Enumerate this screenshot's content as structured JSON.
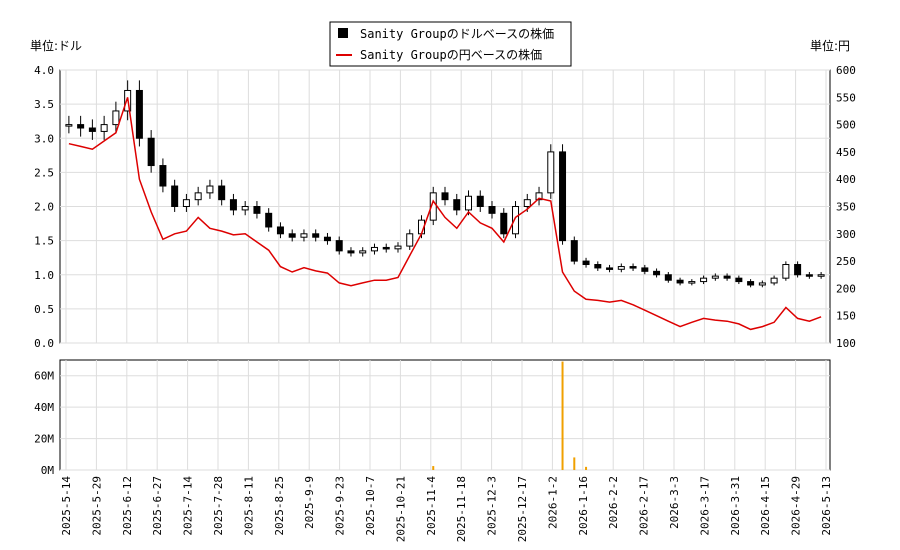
{
  "chart_data": [
    {
      "type": "candlestick+line",
      "left_unit": "単位:ドル",
      "right_unit": "単位:円",
      "legend": [
        {
          "label": "Sanity Groupのドルベースの株価",
          "color": "#000000",
          "marker": "square"
        },
        {
          "label": "Sanity Groupの円ベースの株価",
          "color": "#dd0000",
          "marker": "line"
        }
      ],
      "y_left": {
        "min": 0,
        "max": 4.0,
        "ticks": [
          "0.0",
          "0.5",
          "1.0",
          "1.5",
          "2.0",
          "2.5",
          "3.0",
          "3.5",
          "4.0"
        ]
      },
      "y_right": {
        "min": 100,
        "max": 600,
        "ticks": [
          "100",
          "150",
          "200",
          "250",
          "300",
          "350",
          "400",
          "450",
          "500",
          "550",
          "600"
        ]
      },
      "x_dates": [
        "2025-5-14",
        "2025-5-29",
        "2025-6-12",
        "2025-6-27",
        "2025-7-14",
        "2025-7-28",
        "2025-8-11",
        "2025-8-25",
        "2025-9-9",
        "2025-9-23",
        "2025-10-7",
        "2025-10-21",
        "2025-11-4",
        "2025-11-18",
        "2025-12-3",
        "2025-12-17",
        "2026-1-2",
        "2026-1-16",
        "2026-2-2",
        "2026-2-17",
        "2026-3-3",
        "2026-3-17",
        "2026-3-31",
        "2026-4-15",
        "2026-4-29",
        "2026-5-13"
      ],
      "usd_close_approx": [
        3.2,
        3.15,
        3.1,
        3.2,
        3.4,
        3.7,
        3.0,
        2.6,
        2.3,
        2.0,
        2.1,
        2.2,
        2.3,
        2.1,
        1.95,
        2.0,
        1.9,
        1.7,
        1.6,
        1.55,
        1.6,
        1.55,
        1.5,
        1.35,
        1.32,
        1.35,
        1.4,
        1.38,
        1.42,
        1.6,
        1.8,
        2.2,
        2.1,
        1.95,
        2.15,
        2.0,
        1.9,
        1.6,
        2.0,
        2.1,
        2.2,
        2.8,
        1.5,
        1.2,
        1.15,
        1.1,
        1.08,
        1.12,
        1.1,
        1.05,
        1.0,
        0.92,
        0.88,
        0.9,
        0.95,
        0.98,
        0.95,
        0.9,
        0.85,
        0.88,
        0.95,
        1.15,
        1.0,
        0.98,
        1.0
      ],
      "jpy_close_approx": [
        465,
        460,
        455,
        470,
        485,
        550,
        400,
        340,
        290,
        300,
        305,
        330,
        310,
        305,
        298,
        300,
        285,
        270,
        240,
        230,
        238,
        232,
        228,
        210,
        205,
        210,
        215,
        215,
        220,
        260,
        300,
        360,
        330,
        310,
        340,
        320,
        310,
        285,
        330,
        345,
        365,
        360,
        230,
        195,
        180,
        178,
        175,
        178,
        170,
        160,
        150,
        140,
        130,
        138,
        145,
        142,
        140,
        135,
        125,
        130,
        138,
        165,
        145,
        140,
        148
      ],
      "volume_axis": {
        "ticks": [
          "0M",
          "20M",
          "40M",
          "60M"
        ],
        "max": 70
      },
      "volume_spikes": [
        {
          "index": 31,
          "value": 2.5
        },
        {
          "index": 42,
          "value": 69
        },
        {
          "index": 43,
          "value": 8
        },
        {
          "index": 44,
          "value": 2
        }
      ]
    }
  ]
}
